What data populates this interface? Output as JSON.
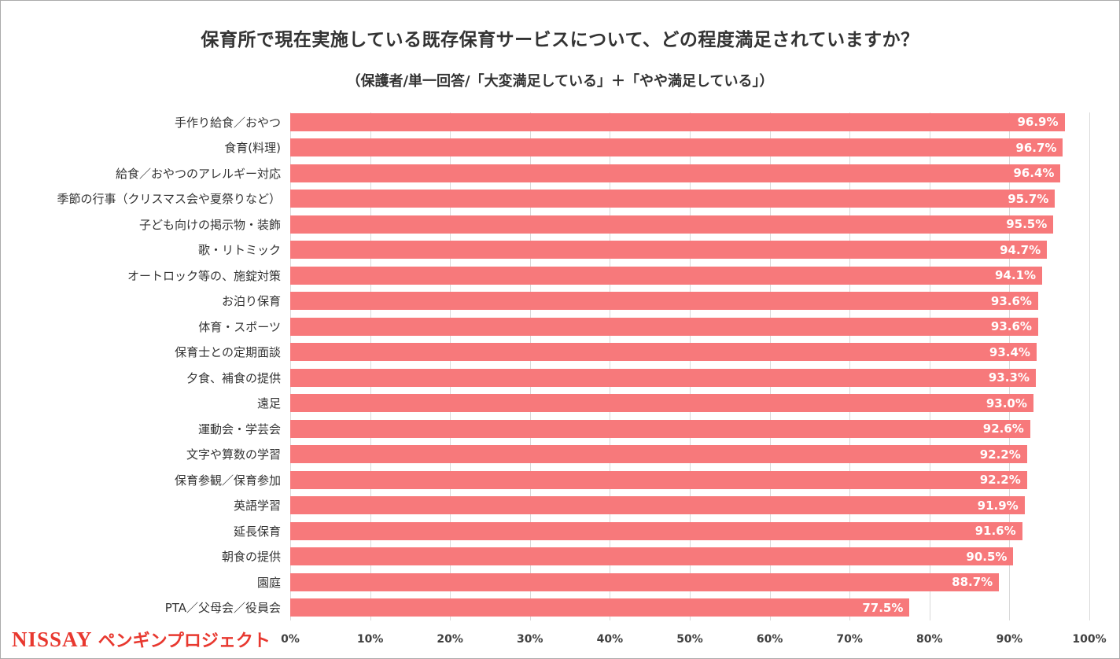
{
  "title": "保育所で現在実施している既存保育サービスについて、どの程度満足されていますか？",
  "subtitle": "（保護者/単一回答/「大変満足している」＋「やや満足している」）",
  "chart_data": {
    "type": "bar",
    "orientation": "horizontal",
    "title": "保育所で現在実施している既存保育サービスについて、どの程度満足されていますか？",
    "subtitle": "（保護者/単一回答/「大変満足している」＋「やや満足している」）",
    "categories": [
      "手作り給食／おやつ",
      "食育(料理)",
      "給食／おやつのアレルギー対応",
      "季節の行事（クリスマス会や夏祭りなど）",
      "子ども向けの掲示物・装飾",
      "歌・リトミック",
      "オートロック等の、施錠対策",
      "お泊り保育",
      "体育・スポーツ",
      "保育士との定期面談",
      "夕食、補食の提供",
      "遠足",
      "運動会・学芸会",
      "文字や算数の学習",
      "保育参観／保育参加",
      "英語学習",
      "延長保育",
      "朝食の提供",
      "園庭",
      "PTA／父母会／役員会"
    ],
    "values": [
      96.9,
      96.7,
      96.4,
      95.7,
      95.5,
      94.7,
      94.1,
      93.6,
      93.6,
      93.4,
      93.3,
      93.0,
      92.6,
      92.2,
      92.2,
      91.9,
      91.6,
      90.5,
      88.7,
      77.5
    ],
    "value_labels": [
      "96.9%",
      "96.7%",
      "96.4%",
      "95.7%",
      "95.5%",
      "94.7%",
      "94.1%",
      "93.6%",
      "93.6%",
      "93.4%",
      "93.3%",
      "93.0%",
      "92.6%",
      "92.2%",
      "92.2%",
      "91.9%",
      "91.6%",
      "90.5%",
      "88.7%",
      "77.5%"
    ],
    "xlim": [
      0,
      100
    ],
    "x_ticks": [
      "0%",
      "10%",
      "20%",
      "30%",
      "40%",
      "50%",
      "60%",
      "70%",
      "80%",
      "90%",
      "100%"
    ],
    "bar_color": "#f7797b",
    "grid": true,
    "legend": "none"
  },
  "footer": {
    "logo_nissay": "NISSAY",
    "logo_project": "ペンギンプロジェクト"
  }
}
